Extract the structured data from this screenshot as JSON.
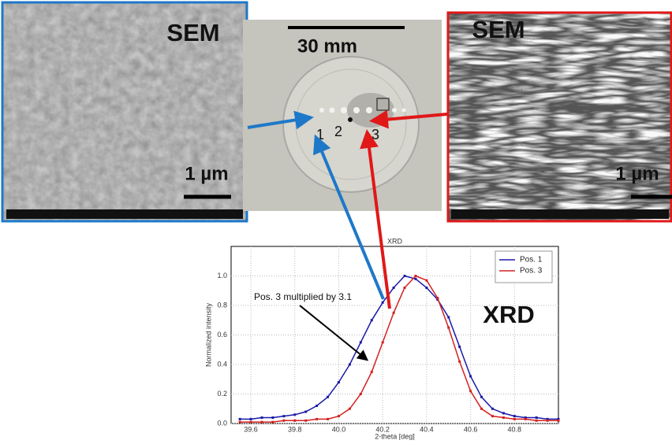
{
  "panels": {
    "left_sem": {
      "label": "SEM",
      "scale": "1 µm"
    },
    "photo": {
      "scale": "30 mm",
      "positions": [
        "1",
        "2",
        "3"
      ]
    },
    "right_sem": {
      "label": "SEM",
      "scale": "1 µm"
    },
    "xrd_label": "XRD"
  },
  "chart_data": {
    "type": "line",
    "title": "XRD",
    "x_label": "2-theta [deg]",
    "y_label": "Normalized intensity",
    "annotation": "Pos. 3 multiplied by 3.1",
    "x": [
      39.55,
      39.6,
      39.65,
      39.7,
      39.75,
      39.8,
      39.85,
      39.9,
      39.95,
      40.0,
      40.05,
      40.1,
      40.15,
      40.2,
      40.25,
      40.3,
      40.35,
      40.4,
      40.45,
      40.5,
      40.55,
      40.6,
      40.65,
      40.7,
      40.75,
      40.8,
      40.85,
      40.9,
      40.95,
      41.0
    ],
    "series": [
      {
        "name": "Pos. 1",
        "color": "#1a1aa8",
        "values": [
          0.03,
          0.03,
          0.04,
          0.04,
          0.05,
          0.06,
          0.08,
          0.12,
          0.18,
          0.28,
          0.4,
          0.55,
          0.7,
          0.82,
          0.92,
          1.0,
          0.98,
          0.92,
          0.84,
          0.72,
          0.52,
          0.32,
          0.18,
          0.1,
          0.07,
          0.05,
          0.04,
          0.04,
          0.03,
          0.03
        ]
      },
      {
        "name": "Pos. 3",
        "color": "#d42020",
        "values": [
          0.01,
          0.01,
          0.01,
          0.01,
          0.02,
          0.02,
          0.02,
          0.03,
          0.03,
          0.05,
          0.1,
          0.2,
          0.35,
          0.55,
          0.75,
          0.92,
          1.0,
          0.97,
          0.85,
          0.65,
          0.42,
          0.22,
          0.1,
          0.05,
          0.04,
          0.03,
          0.03,
          0.02,
          0.02,
          0.02
        ]
      }
    ],
    "xlim": [
      39.51,
      41.0
    ],
    "ylim": [
      0,
      1.2
    ],
    "xticks": [
      39.6,
      39.8,
      {
        "value": 40,
        "label": "40.0"
      },
      40.2,
      40.4,
      40.6,
      40.8
    ],
    "yticks": [
      {
        "value": 0,
        "label": "0.0"
      },
      0.2,
      0.4,
      0.6,
      0.8,
      {
        "value": 1,
        "label": "1.0"
      }
    ],
    "grid": true,
    "legend": "upper right"
  }
}
